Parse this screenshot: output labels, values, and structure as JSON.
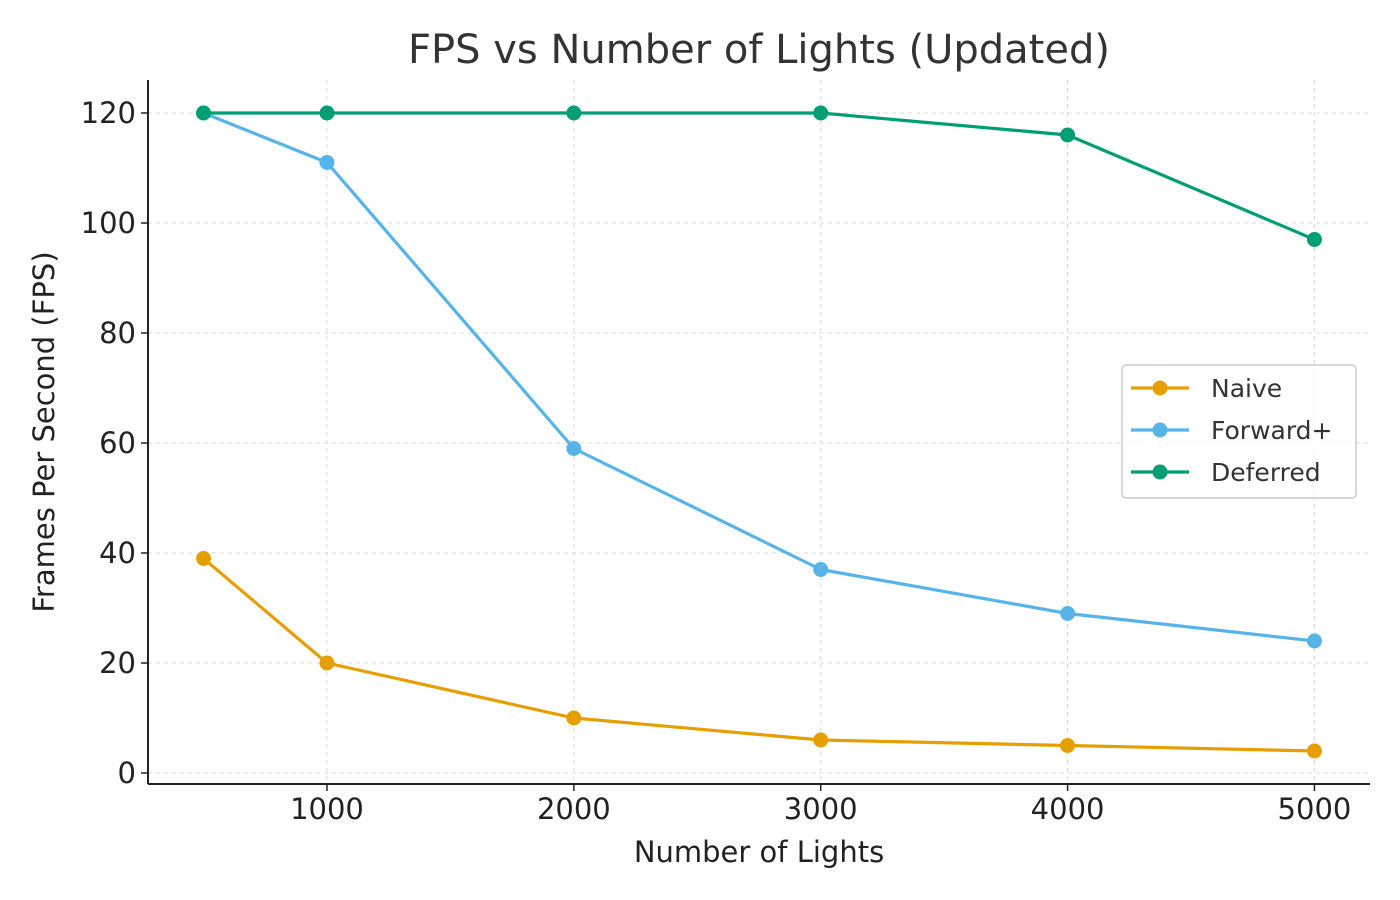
{
  "chart_data": {
    "type": "line",
    "title": "FPS vs Number of Lights (Updated)",
    "xlabel": "Number of Lights",
    "ylabel": "Frames Per Second (FPS)",
    "x": [
      500,
      1000,
      2000,
      3000,
      4000,
      5000
    ],
    "xlim": [
      275,
      5225
    ],
    "ylim": [
      -2,
      126
    ],
    "xticks": [
      1000,
      2000,
      3000,
      4000,
      5000
    ],
    "yticks": [
      0,
      20,
      40,
      60,
      80,
      100,
      120
    ],
    "grid": true,
    "legend_position": "center-right",
    "series": [
      {
        "name": "Naive",
        "color": "#E69F00",
        "values": [
          39,
          20,
          10,
          6,
          5,
          4
        ]
      },
      {
        "name": "Forward+",
        "color": "#56B4E9",
        "values": [
          120,
          111,
          59,
          37,
          29,
          24
        ]
      },
      {
        "name": "Deferred",
        "color": "#009E73",
        "values": [
          120,
          120,
          120,
          120,
          116,
          97
        ]
      }
    ]
  }
}
